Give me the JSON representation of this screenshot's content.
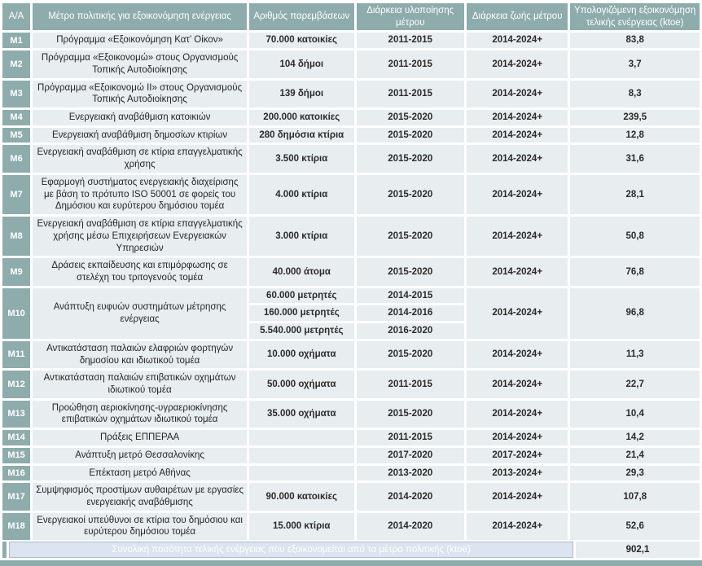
{
  "colors": {
    "header_teal": "#8EACAC",
    "row_background": "#E8EDEF",
    "total_label_background": "#DCE4F0",
    "total_label_border": "#A9BBD6",
    "grid_white": "#FFFFFF",
    "body_text": "#262626"
  },
  "table": {
    "headers": [
      "Α/Α",
      "Μέτρο πολιτικής για εξοικονόμηση ενέργειας",
      "Αριθμός παρεμβάσεων",
      "Διάρκεια υλοποίησης μέτρου",
      "Διάρκεια ζωής μέτρου",
      "Υπολογιζόμενη εξοικονόμηση τελικής ενέργειας (ktoe)"
    ],
    "rows": [
      {
        "id": "M1",
        "measure": "Πρόγραμμα «Εξοικονόμηση Κατ’ Οίκον»",
        "interventions": [
          "70.000 κατοικίες"
        ],
        "implementation": [
          "2011-2015"
        ],
        "lifetime": "2014-2024+",
        "savings": "83,8"
      },
      {
        "id": "M2",
        "measure": "Πρόγραμμα «Εξοικονομώ» στους Οργανισμούς Τοπικής Αυτοδιοίκησης",
        "interventions": [
          "104 δήμοι"
        ],
        "implementation": [
          "2011-2015"
        ],
        "lifetime": "2014-2024+",
        "savings": "3,7"
      },
      {
        "id": "M3",
        "measure": "Πρόγραμμα «Εξοικονομώ ΙΙ» στους Οργανισμούς Τοπικής Αυτοδιοίκησης",
        "interventions": [
          "139 δήμοι"
        ],
        "implementation": [
          "2011-2015"
        ],
        "lifetime": "2014-2024+",
        "savings": "8,3"
      },
      {
        "id": "M4",
        "measure": "Ενεργειακή αναβάθμιση κατοικιών",
        "interventions": [
          "200.000 κατοικίες"
        ],
        "implementation": [
          "2015-2020"
        ],
        "lifetime": "2014-2024+",
        "savings": "239,5"
      },
      {
        "id": "M5",
        "measure": "Ενεργειακή αναβάθμιση δημοσίων κτιρίων",
        "interventions": [
          "280 δημόσια κτίρια"
        ],
        "implementation": [
          "2015-2020"
        ],
        "lifetime": "2014-2024+",
        "savings": "12,8"
      },
      {
        "id": "M6",
        "measure": "Ενεργειακή αναβάθμιση σε κτίρια επαγγελματικής χρήσης",
        "interventions": [
          "3.500 κτίρια"
        ],
        "implementation": [
          "2015-2020"
        ],
        "lifetime": "2014-2024+",
        "savings": "31,6"
      },
      {
        "id": "M7",
        "measure": "Εφαρμογή συστήματος ενεργειακής διαχείρισης με βάση το πρότυπο ISO 50001 σε φορείς του Δημόσιου και ευρύτερου δημόσιου τομέα",
        "interventions": [
          "4.000 κτίρια"
        ],
        "implementation": [
          "2015-2020"
        ],
        "lifetime": "2014-2024+",
        "savings": "28,1"
      },
      {
        "id": "M8",
        "measure": "Ενεργειακή αναβάθμιση σε κτίρια επαγγελματικής χρήσης μέσω Επιχειρήσεων Ενεργειακών Υπηρεσιών",
        "interventions": [
          "3.000 κτίρια"
        ],
        "implementation": [
          "2015-2020"
        ],
        "lifetime": "2014-2024+",
        "savings": "50,8"
      },
      {
        "id": "M9",
        "measure": "Δράσεις εκπαίδευσης και επιμόρφωσης σε στελέχη του τριτογενούς τομέα",
        "interventions": [
          "40.000 άτομα"
        ],
        "implementation": [
          "2015-2020"
        ],
        "lifetime": "2014-2024+",
        "savings": "76,8"
      },
      {
        "id": "M10",
        "measure": "Ανάπτυξη ευφυών συστημάτων μέτρησης ενέργειας",
        "interventions": [
          "60.000 μετρητές",
          "160.000 μετρητές",
          "5.540.000 μετρητές"
        ],
        "implementation": [
          "2014-2015",
          "2014-2016",
          "2016-2020"
        ],
        "lifetime": "2014-2024+",
        "savings": "96,8"
      },
      {
        "id": "M11",
        "measure": "Αντικατάσταση παλαιών ελαφριών φορτηγών δημοσίου και ιδιωτικού τομέα",
        "interventions": [
          "10.000 οχήματα"
        ],
        "implementation": [
          "2015-2020"
        ],
        "lifetime": "2014-2024+",
        "savings": "11,3"
      },
      {
        "id": "M12",
        "measure": "Αντικατάσταση παλαιών επιβατικών οχημάτων ιδιωτικού τομέα",
        "interventions": [
          "50.000 οχήματα"
        ],
        "implementation": [
          "2011-2015"
        ],
        "lifetime": "2014-2024+",
        "savings": "22,7"
      },
      {
        "id": "M13",
        "measure": "Προώθηση αεριοκίνησης-υγραεριοκίνησης επιβατικών οχημάτων ιδιωτικού τομέα",
        "interventions": [
          "35.000 οχήματα"
        ],
        "implementation": [
          "2015-2020"
        ],
        "lifetime": "2014-2024+",
        "savings": "10,4"
      },
      {
        "id": "M14",
        "measure": "Πράξεις ΕΠΠΕΡΑΑ",
        "interventions": [
          ""
        ],
        "implementation": [
          "2011-2015"
        ],
        "lifetime": "2014-2024+",
        "savings": "14,2"
      },
      {
        "id": "M15",
        "measure": "Ανάπτυξη μετρό Θεσσαλονίκης",
        "interventions": [
          ""
        ],
        "implementation": [
          "2017-2020"
        ],
        "lifetime": "2017-2024+",
        "savings": "21,4"
      },
      {
        "id": "M16",
        "measure": "Επέκταση μετρό Αθήνας",
        "interventions": [
          ""
        ],
        "implementation": [
          "2013-2020"
        ],
        "lifetime": "2013-2024+",
        "savings": "29,3"
      },
      {
        "id": "M17",
        "measure": "Συμψηφισμός προστίμων αυθαιρέτων με εργασίες ενεργειακής αναβάθμισης",
        "interventions": [
          "90.000 κατοικίες"
        ],
        "implementation": [
          "2014-2020"
        ],
        "lifetime": "2014-2024+",
        "savings": "107,8"
      },
      {
        "id": "M18",
        "measure": "Ενεργειακοί υπεύθυνοι σε κτίρια του δημόσιου και ευρύτερου δημόσιου τομέα",
        "interventions": [
          "15.000 κτίρια"
        ],
        "implementation": [
          "2014-2020"
        ],
        "lifetime": "2014-2024+",
        "savings": "52,6"
      }
    ],
    "total": {
      "label": "Συνολική ποσότητα τελικής ενέργειας που εξοικονομείται από τα μέτρα πολιτικής (ktoe)",
      "value": "902,1"
    }
  }
}
